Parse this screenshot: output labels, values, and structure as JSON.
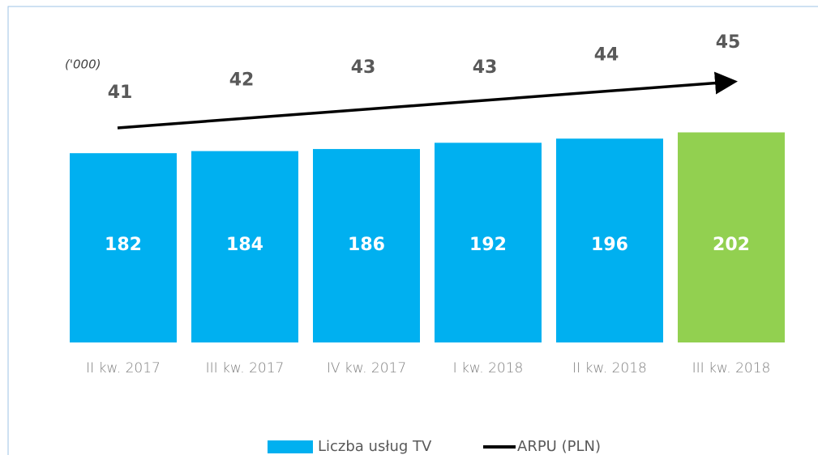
{
  "chart_data": {
    "type": "bar",
    "unit_label": "('000)",
    "categories": [
      "II kw. 2017",
      "III kw. 2017",
      "IV kw. 2017",
      "I kw. 2018",
      "II kw. 2018",
      "III kw. 2018"
    ],
    "series": [
      {
        "name": "Liczba usług TV",
        "color": "#00b0f0",
        "colors": [
          "#00b0f0",
          "#00b0f0",
          "#00b0f0",
          "#00b0f0",
          "#00b0f0",
          "#92d050"
        ],
        "values": [
          182,
          184,
          186,
          192,
          196,
          202
        ]
      },
      {
        "name": "ARPU (PLN)",
        "color": "#000000",
        "axis": "y2",
        "values": [
          41,
          42,
          43,
          43,
          44,
          45
        ]
      }
    ],
    "ylim": [
      0,
      260
    ],
    "y2lim": [
      36,
      48
    ]
  }
}
